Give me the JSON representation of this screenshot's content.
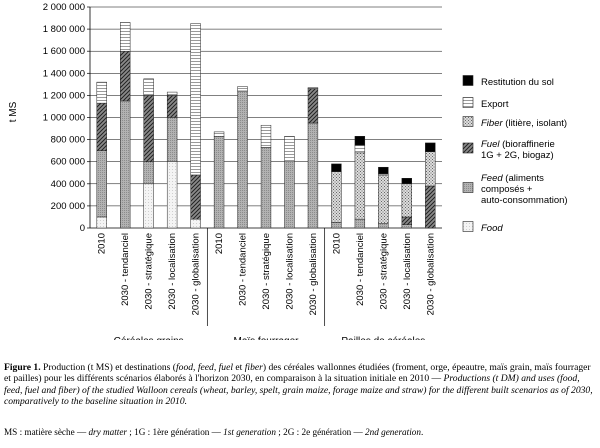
{
  "chart_data": {
    "type": "bar",
    "stacked": true,
    "ylabel": "t MS",
    "ylim": [
      0,
      2000000
    ],
    "yticks": [
      0,
      200000,
      400000,
      600000,
      800000,
      1000000,
      1200000,
      1400000,
      1600000,
      1800000,
      2000000
    ],
    "ytick_labels": [
      "0",
      "200 000",
      "400 000",
      "600 000",
      "800 000",
      "1 000 000",
      "1 200 000",
      "1 400 000",
      "1 600 000",
      "1 800 000",
      "2 000 000"
    ],
    "grid": true,
    "legend_position": "right",
    "groups": [
      {
        "name": "Céréales grains",
        "categories": [
          "2010",
          "2030 - tendanciel",
          "2030 - stratégique",
          "2030 - localisation",
          "2030 - globalisation"
        ]
      },
      {
        "name": "Maïs fourrager",
        "categories": [
          "2010",
          "2030 - tendanciel",
          "2030 - stratégique",
          "2030 - localisation",
          "2030 - globalisation"
        ]
      },
      {
        "name": "Pailles de céréales",
        "categories": [
          "2010",
          "2030 - tendanciel",
          "2030 - stratégique",
          "2030 - localisation",
          "2030 - globalisation"
        ]
      }
    ],
    "series": [
      {
        "name": "Food",
        "key": "food",
        "values": [
          100000,
          0,
          400000,
          600000,
          80000,
          0,
          0,
          0,
          0,
          0,
          0,
          0,
          0,
          0,
          0
        ]
      },
      {
        "name": "Feed (aliments composés + auto-consommation)",
        "key": "feed",
        "values": [
          600000,
          1150000,
          200000,
          400000,
          0,
          830000,
          1240000,
          730000,
          600000,
          950000,
          50000,
          80000,
          40000,
          30000,
          0
        ]
      },
      {
        "name": "Fuel (bioraffinerie 1G + 2G, biogaz)",
        "key": "fuel",
        "values": [
          430000,
          450000,
          600000,
          200000,
          400000,
          0,
          0,
          0,
          0,
          310000,
          0,
          0,
          0,
          70000,
          380000
        ]
      },
      {
        "name": "Fiber (litière, isolant)",
        "key": "fiber",
        "values": [
          0,
          0,
          0,
          0,
          0,
          0,
          0,
          0,
          0,
          0,
          460000,
          600000,
          440000,
          300000,
          310000
        ]
      },
      {
        "name": "Export",
        "key": "export",
        "values": [
          190000,
          260000,
          150000,
          30000,
          1370000,
          40000,
          40000,
          200000,
          230000,
          10000,
          0,
          70000,
          10000,
          0,
          0
        ]
      },
      {
        "name": "Restitution du sol",
        "key": "restitution",
        "values": [
          0,
          0,
          0,
          0,
          0,
          0,
          0,
          0,
          0,
          0,
          70000,
          80000,
          60000,
          50000,
          80000
        ]
      }
    ],
    "colors": {
      "food": "#f2f2f2",
      "feed": "#a8a8a8",
      "fuel": "#6f6f6f",
      "fiber": "#d6d6d6",
      "export": "#ffffff",
      "restitution": "#000000",
      "axis": "#000000",
      "grid": "#000000"
    }
  },
  "legend": [
    {
      "key": "restitution",
      "lines": [
        "Restitution du sol"
      ],
      "italic_word": ""
    },
    {
      "key": "export",
      "lines": [
        "Export"
      ],
      "italic_word": ""
    },
    {
      "key": "fiber",
      "lines": [
        "Fiber (litière, isolant)"
      ],
      "italic_word": "Fiber"
    },
    {
      "key": "fuel",
      "lines": [
        "Fuel (bioraffinerie",
        "1G + 2G, biogaz)"
      ],
      "italic_word": "Fuel"
    },
    {
      "key": "feed",
      "lines": [
        "Feed (aliments",
        "composés +",
        "auto-consommation)"
      ],
      "italic_word": "Feed"
    },
    {
      "key": "food",
      "lines": [
        "Food"
      ],
      "italic_word": "Food"
    }
  ],
  "caption": {
    "figure_label": "Figure 1.",
    "fr_part1": "Production (t MS) et destinations (",
    "fr_food": "food",
    "fr_sep1": ", ",
    "fr_feed": "feed",
    "fr_sep2": ", ",
    "fr_fuel": "fuel",
    "fr_and": " et ",
    "fr_fiber": "fiber",
    "fr_part2": ") des céréales wallonnes étudiées (froment, orge, épeautre, maïs grain, maïs fourrager et pailles) pour les différents scénarios élaborés à l'horizon 2030, en comparaison à la situation initiale en 2010 — ",
    "en_text": "Productions (t DM) and uses (food, feed, fuel and fiber) of the studied Walloon cereals (wheat, barley, spelt, grain maize, forage maize and straw) for the different built scenarios as of 2030, comparatively to the baseline situation in 2010.",
    "abbrev_ms": "MS : matière sèche — ",
    "abbrev_ms_en": "dry matter",
    "abbrev_1g": " ; 1G : 1ère génération — ",
    "abbrev_1g_en": "1st generation",
    "abbrev_2g": " ; 2G : 2e génération — ",
    "abbrev_2g_en": "2nd generation",
    "abbrev_end": "."
  }
}
